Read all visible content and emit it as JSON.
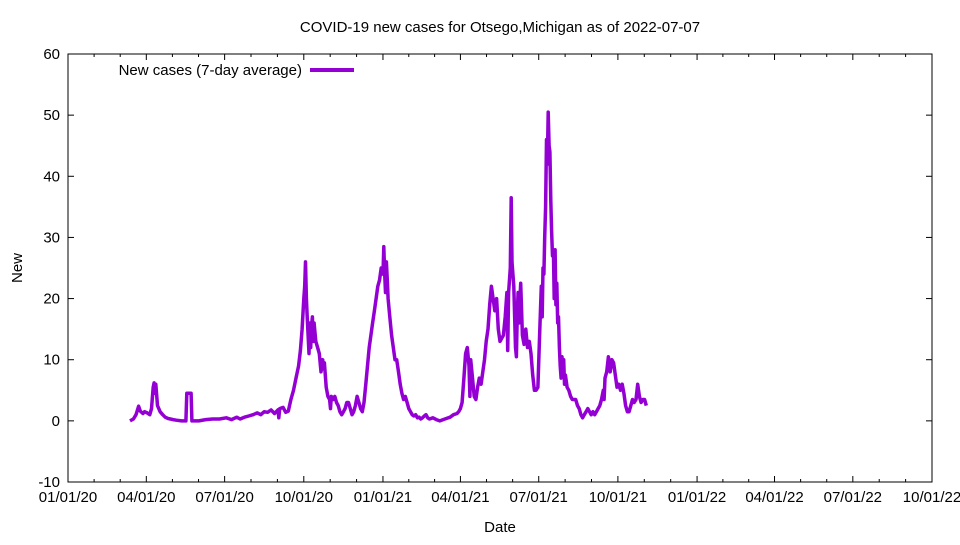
{
  "chart_data": {
    "type": "line",
    "title": "COVID-19 new cases for Otsego,Michigan as of 2022-07-07",
    "xlabel": "Date",
    "ylabel": "New",
    "ylim": [
      -10,
      60
    ],
    "yticks": [
      -10,
      0,
      10,
      20,
      30,
      40,
      50,
      60
    ],
    "xlim_days": [
      0,
      1004
    ],
    "xticks": [
      {
        "label": "01/01/20",
        "day": 0
      },
      {
        "label": "04/01/20",
        "day": 91
      },
      {
        "label": "07/01/20",
        "day": 182
      },
      {
        "label": "10/01/20",
        "day": 274
      },
      {
        "label": "01/01/21",
        "day": 366
      },
      {
        "label": "04/01/21",
        "day": 456
      },
      {
        "label": "07/01/21",
        "day": 547
      },
      {
        "label": "10/01/21",
        "day": 639
      },
      {
        "label": "01/01/22",
        "day": 731
      },
      {
        "label": "04/01/22",
        "day": 821
      },
      {
        "label": "07/01/22",
        "day": 912
      },
      {
        "label": "10/01/22",
        "day": 1004
      }
    ],
    "legend": {
      "label": "New cases (7-day average)",
      "position": "top-left"
    },
    "series": [
      {
        "name": "New cases (7-day average)",
        "color": "#9400d3",
        "points": [
          [
            72,
            0.0
          ],
          [
            76,
            0.3
          ],
          [
            79,
            1.0
          ],
          [
            82,
            2.4
          ],
          [
            84,
            1.6
          ],
          [
            87,
            1.2
          ],
          [
            89,
            1.5
          ],
          [
            92,
            1.3
          ],
          [
            95,
            1.0
          ],
          [
            97,
            2.0
          ],
          [
            99,
            5.5
          ],
          [
            100,
            6.2
          ],
          [
            101,
            4.5
          ],
          [
            102,
            6.0
          ],
          [
            104,
            2.5
          ],
          [
            107,
            1.5
          ],
          [
            110,
            1.0
          ],
          [
            113,
            0.6
          ],
          [
            116,
            0.4
          ],
          [
            119,
            0.3
          ],
          [
            122,
            0.2
          ],
          [
            126,
            0.1
          ],
          [
            132,
            0.0
          ],
          [
            137,
            0.0
          ],
          [
            138,
            4.5
          ],
          [
            143,
            4.5
          ],
          [
            144,
            0.0
          ],
          [
            152,
            0.0
          ],
          [
            160,
            0.2
          ],
          [
            168,
            0.3
          ],
          [
            176,
            0.3
          ],
          [
            184,
            0.5
          ],
          [
            190,
            0.2
          ],
          [
            196,
            0.6
          ],
          [
            200,
            0.3
          ],
          [
            205,
            0.6
          ],
          [
            210,
            0.8
          ],
          [
            215,
            1.0
          ],
          [
            220,
            1.3
          ],
          [
            224,
            1.0
          ],
          [
            228,
            1.5
          ],
          [
            232,
            1.4
          ],
          [
            236,
            1.8
          ],
          [
            240,
            1.2
          ],
          [
            244,
            1.8
          ],
          [
            245,
            0.5
          ],
          [
            246,
            2.0
          ],
          [
            250,
            2.2
          ],
          [
            253,
            1.4
          ],
          [
            256,
            1.6
          ],
          [
            259,
            3.5
          ],
          [
            262,
            5.0
          ],
          [
            265,
            7.0
          ],
          [
            268,
            9.0
          ],
          [
            270,
            11.5
          ],
          [
            272,
            15.0
          ],
          [
            274,
            20.0
          ],
          [
            275,
            22.0
          ],
          [
            276,
            26.0
          ],
          [
            277,
            20.0
          ],
          [
            278,
            17.0
          ],
          [
            279,
            14.0
          ],
          [
            280,
            11.0
          ],
          [
            281,
            16.0
          ],
          [
            282,
            12.0
          ],
          [
            283,
            15.5
          ],
          [
            284,
            17.0
          ],
          [
            285,
            13.0
          ],
          [
            286,
            16.0
          ],
          [
            288,
            13.0
          ],
          [
            290,
            12.0
          ],
          [
            292,
            11.0
          ],
          [
            294,
            8.0
          ],
          [
            296,
            10.0
          ],
          [
            297,
            8.5
          ],
          [
            298,
            9.5
          ],
          [
            300,
            5.5
          ],
          [
            302,
            4.0
          ],
          [
            304,
            3.5
          ],
          [
            305,
            2.0
          ],
          [
            306,
            4.0
          ],
          [
            308,
            3.5
          ],
          [
            310,
            4.0
          ],
          [
            312,
            3.0
          ],
          [
            314,
            2.5
          ],
          [
            316,
            1.5
          ],
          [
            318,
            1.0
          ],
          [
            320,
            1.5
          ],
          [
            322,
            2.0
          ],
          [
            324,
            3.0
          ],
          [
            326,
            3.0
          ],
          [
            328,
            2.0
          ],
          [
            330,
            1.0
          ],
          [
            332,
            1.5
          ],
          [
            334,
            2.5
          ],
          [
            336,
            4.0
          ],
          [
            338,
            3.0
          ],
          [
            340,
            2.0
          ],
          [
            342,
            1.5
          ],
          [
            344,
            3.0
          ],
          [
            346,
            6.0
          ],
          [
            348,
            9.0
          ],
          [
            350,
            12.0
          ],
          [
            352,
            14.0
          ],
          [
            354,
            16.0
          ],
          [
            356,
            18.0
          ],
          [
            358,
            20.0
          ],
          [
            360,
            22.0
          ],
          [
            362,
            23.0
          ],
          [
            364,
            25.0
          ],
          [
            366,
            24.0
          ],
          [
            367,
            28.5
          ],
          [
            368,
            24.0
          ],
          [
            369,
            21.0
          ],
          [
            370,
            26.0
          ],
          [
            371,
            23.0
          ],
          [
            372,
            20.0
          ],
          [
            374,
            17.0
          ],
          [
            376,
            14.0
          ],
          [
            378,
            12.0
          ],
          [
            380,
            10.0
          ],
          [
            382,
            10.0
          ],
          [
            384,
            8.0
          ],
          [
            386,
            6.0
          ],
          [
            388,
            4.5
          ],
          [
            390,
            3.5
          ],
          [
            392,
            4.0
          ],
          [
            394,
            3.0
          ],
          [
            396,
            2.0
          ],
          [
            398,
            1.5
          ],
          [
            400,
            1.0
          ],
          [
            402,
            0.8
          ],
          [
            404,
            1.0
          ],
          [
            406,
            0.5
          ],
          [
            408,
            0.6
          ],
          [
            410,
            0.3
          ],
          [
            412,
            0.5
          ],
          [
            414,
            0.8
          ],
          [
            416,
            1.0
          ],
          [
            418,
            0.5
          ],
          [
            420,
            0.3
          ],
          [
            424,
            0.5
          ],
          [
            428,
            0.2
          ],
          [
            432,
            0.0
          ],
          [
            436,
            0.2
          ],
          [
            440,
            0.4
          ],
          [
            444,
            0.6
          ],
          [
            448,
            1.0
          ],
          [
            452,
            1.2
          ],
          [
            454,
            1.5
          ],
          [
            456,
            2.0
          ],
          [
            458,
            3.0
          ],
          [
            460,
            7.0
          ],
          [
            462,
            11.0
          ],
          [
            464,
            12.0
          ],
          [
            466,
            9.0
          ],
          [
            467,
            4.0
          ],
          [
            468,
            10.0
          ],
          [
            470,
            7.0
          ],
          [
            472,
            4.0
          ],
          [
            474,
            3.5
          ],
          [
            476,
            5.5
          ],
          [
            478,
            7.0
          ],
          [
            480,
            6.0
          ],
          [
            482,
            8.0
          ],
          [
            484,
            10.0
          ],
          [
            486,
            13.0
          ],
          [
            488,
            15.0
          ],
          [
            490,
            19.0
          ],
          [
            492,
            22.0
          ],
          [
            494,
            20.0
          ],
          [
            496,
            18.0
          ],
          [
            498,
            20.0
          ],
          [
            500,
            15.0
          ],
          [
            502,
            13.0
          ],
          [
            504,
            13.5
          ],
          [
            506,
            14.0
          ],
          [
            508,
            17.0
          ],
          [
            510,
            21.0
          ],
          [
            511,
            11.5
          ],
          [
            512,
            21.0
          ],
          [
            514,
            25.0
          ],
          [
            515,
            36.5
          ],
          [
            516,
            26.0
          ],
          [
            518,
            22.0
          ],
          [
            520,
            12.0
          ],
          [
            521,
            10.5
          ],
          [
            522,
            17.0
          ],
          [
            523,
            21.0
          ],
          [
            524,
            16.0
          ],
          [
            526,
            22.5
          ],
          [
            528,
            14.0
          ],
          [
            530,
            12.5
          ],
          [
            532,
            15.0
          ],
          [
            534,
            12.0
          ],
          [
            536,
            13.0
          ],
          [
            538,
            11.0
          ],
          [
            540,
            7.5
          ],
          [
            542,
            5.0
          ],
          [
            544,
            5.0
          ],
          [
            546,
            5.5
          ],
          [
            548,
            14.0
          ],
          [
            550,
            22.0
          ],
          [
            551,
            17.0
          ],
          [
            552,
            25.0
          ],
          [
            553,
            24.0
          ],
          [
            554,
            30.0
          ],
          [
            555,
            35.0
          ],
          [
            556,
            46.0
          ],
          [
            557,
            42.0
          ],
          [
            558,
            50.5
          ],
          [
            559,
            45.0
          ],
          [
            560,
            44.0
          ],
          [
            561,
            36.0
          ],
          [
            562,
            31.0
          ],
          [
            563,
            27.0
          ],
          [
            564,
            28.0
          ],
          [
            565,
            20.0
          ],
          [
            566,
            28.0
          ],
          [
            567,
            19.0
          ],
          [
            568,
            22.5
          ],
          [
            569,
            16.0
          ],
          [
            570,
            17.0
          ],
          [
            571,
            12.0
          ],
          [
            572,
            9.0
          ],
          [
            573,
            7.0
          ],
          [
            574,
            10.5
          ],
          [
            575,
            8.0
          ],
          [
            576,
            10.0
          ],
          [
            577,
            6.0
          ],
          [
            578,
            7.5
          ],
          [
            580,
            5.5
          ],
          [
            582,
            5.0
          ],
          [
            584,
            4.0
          ],
          [
            586,
            3.5
          ],
          [
            588,
            3.5
          ],
          [
            590,
            3.5
          ],
          [
            592,
            2.5
          ],
          [
            594,
            2.0
          ],
          [
            596,
            1.0
          ],
          [
            598,
            0.5
          ],
          [
            600,
            1.0
          ],
          [
            602,
            1.5
          ],
          [
            604,
            2.0
          ],
          [
            606,
            1.5
          ],
          [
            608,
            1.0
          ],
          [
            610,
            1.5
          ],
          [
            612,
            1.0
          ],
          [
            614,
            1.5
          ],
          [
            616,
            2.0
          ],
          [
            618,
            2.5
          ],
          [
            620,
            3.5
          ],
          [
            622,
            5.0
          ],
          [
            623,
            3.5
          ],
          [
            624,
            7.0
          ],
          [
            626,
            8.0
          ],
          [
            628,
            10.5
          ],
          [
            630,
            8.0
          ],
          [
            632,
            10.0
          ],
          [
            634,
            9.5
          ],
          [
            636,
            7.5
          ],
          [
            638,
            5.5
          ],
          [
            640,
            6.0
          ],
          [
            642,
            5.0
          ],
          [
            644,
            6.0
          ],
          [
            646,
            4.5
          ],
          [
            648,
            2.5
          ],
          [
            650,
            1.5
          ],
          [
            652,
            1.5
          ],
          [
            654,
            2.5
          ],
          [
            656,
            3.5
          ],
          [
            658,
            3.0
          ],
          [
            660,
            3.5
          ],
          [
            662,
            6.0
          ],
          [
            664,
            4.0
          ],
          [
            666,
            3.0
          ],
          [
            668,
            3.5
          ],
          [
            670,
            3.5
          ],
          [
            672,
            2.5
          ]
        ]
      }
    ]
  }
}
